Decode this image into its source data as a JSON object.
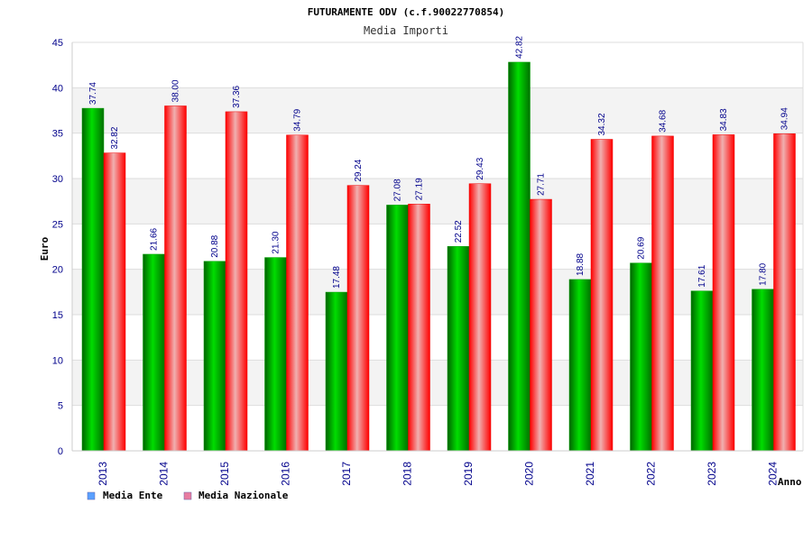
{
  "chart_data": {
    "type": "bar",
    "title": "FUTURAMENTE ODV (c.f.90022770854)",
    "subtitle": "Media Importi",
    "xlabel": "Anno",
    "ylabel": "Euro",
    "ylim": [
      0,
      45
    ],
    "yticks": [
      "0",
      "5",
      "10",
      "15",
      "20",
      "25",
      "30",
      "35",
      "40",
      "45"
    ],
    "categories": [
      "2013",
      "2014",
      "2015",
      "2016",
      "2017",
      "2018",
      "2019",
      "2020",
      "2021",
      "2022",
      "2023",
      "2024"
    ],
    "series": [
      {
        "name": "Media Ente",
        "values": [
          37.74,
          21.66,
          20.88,
          21.3,
          17.48,
          27.08,
          22.52,
          42.82,
          18.88,
          20.69,
          17.61,
          17.8
        ],
        "labels": [
          "37.74",
          "21.66",
          "20.88",
          "21.30",
          "17.48",
          "27.08",
          "22.52",
          "42.82",
          "18.88",
          "20.69",
          "17.61",
          "17.80"
        ],
        "color": "#00a000",
        "legend_color": "#5aa0ff"
      },
      {
        "name": "Media Nazionale",
        "values": [
          32.82,
          38.0,
          37.36,
          34.79,
          29.24,
          27.19,
          29.43,
          27.71,
          34.32,
          34.68,
          34.83,
          34.94
        ],
        "labels": [
          "32.82",
          "38.00",
          "37.36",
          "34.79",
          "29.24",
          "27.19",
          "29.43",
          "27.71",
          "34.32",
          "34.68",
          "34.83",
          "34.94"
        ],
        "color": "#ff0000",
        "legend_color": "#e87ca0"
      }
    ],
    "grid": true,
    "legend": "bottom-left"
  }
}
